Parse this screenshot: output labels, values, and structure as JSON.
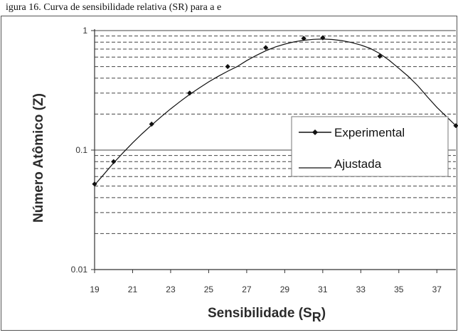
{
  "caption": "igura 16. Curva de sensibilidade relativa (SR) para a e",
  "chart_data": {
    "type": "line",
    "title": "",
    "xlabel": "Sensibilidade (S",
    "xlabel_sub": "R",
    "xlabel_close": ")",
    "ylabel": "Número Atômico (Z)",
    "y_scale": "log",
    "ylim": [
      0.01,
      1
    ],
    "xlim": [
      19,
      38
    ],
    "x_ticks": [
      19,
      21,
      23,
      25,
      27,
      29,
      31,
      33,
      35,
      37
    ],
    "x_tick_labels": [
      "19",
      "21",
      "23",
      "25",
      "27",
      "29",
      "31",
      "33",
      "35",
      "37"
    ],
    "y_ticks": [
      0.01,
      0.1,
      1
    ],
    "y_tick_labels": [
      "0.01",
      "0.1",
      "1"
    ],
    "grid": "dashed horizontal",
    "legend_position": "right",
    "series": [
      {
        "name": "Experimental",
        "marker": "diamond",
        "color": "#111111",
        "x": [
          19,
          20,
          22,
          24,
          26,
          28,
          30,
          31,
          34,
          38
        ],
        "y": [
          0.052,
          0.08,
          0.165,
          0.3,
          0.5,
          0.72,
          0.86,
          0.87,
          0.61,
          0.16
        ]
      },
      {
        "name": "Ajustada",
        "marker": "none",
        "color": "#111111",
        "x": [
          19,
          19.5,
          20,
          20.5,
          21,
          21.5,
          22,
          22.5,
          23,
          23.5,
          24,
          24.5,
          25,
          25.5,
          26,
          26.5,
          27,
          27.5,
          28,
          28.5,
          29,
          29.5,
          30,
          30.5,
          31,
          31.5,
          32,
          32.5,
          33,
          33.5,
          34,
          34.5,
          35,
          35.5,
          36,
          36.5,
          37,
          37.5,
          38
        ],
        "y": [
          0.051,
          0.063,
          0.078,
          0.095,
          0.115,
          0.137,
          0.162,
          0.19,
          0.221,
          0.255,
          0.292,
          0.331,
          0.372,
          0.414,
          0.457,
          0.5,
          0.561,
          0.62,
          0.678,
          0.729,
          0.771,
          0.805,
          0.83,
          0.845,
          0.85,
          0.843,
          0.824,
          0.795,
          0.757,
          0.709,
          0.641,
          0.563,
          0.483,
          0.413,
          0.345,
          0.279,
          0.228,
          0.191,
          0.16
        ]
      }
    ]
  }
}
